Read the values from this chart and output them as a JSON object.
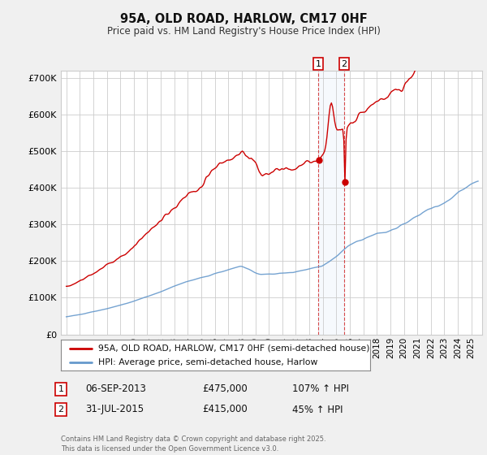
{
  "title": "95A, OLD ROAD, HARLOW, CM17 0HF",
  "subtitle": "Price paid vs. HM Land Registry's House Price Index (HPI)",
  "legend_line1": "95A, OLD ROAD, HARLOW, CM17 0HF (semi-detached house)",
  "legend_line2": "HPI: Average price, semi-detached house, Harlow",
  "annotation1_label": "1",
  "annotation1_date": "06-SEP-2013",
  "annotation1_price": "£475,000",
  "annotation1_hpi": "107% ↑ HPI",
  "annotation2_label": "2",
  "annotation2_date": "31-JUL-2015",
  "annotation2_price": "£415,000",
  "annotation2_hpi": "45% ↑ HPI",
  "footer": "Contains HM Land Registry data © Crown copyright and database right 2025.\nThis data is licensed under the Open Government Licence v3.0.",
  "red_color": "#cc0000",
  "blue_color": "#6699cc",
  "bg_color": "#f0f0f0",
  "plot_bg": "#ffffff",
  "grid_color": "#cccccc",
  "ylim": [
    0,
    720000
  ],
  "yticks": [
    0,
    100000,
    200000,
    300000,
    400000,
    500000,
    600000,
    700000
  ],
  "year_start": 1995,
  "year_end": 2025,
  "sale1_year": 2013.67,
  "sale2_year": 2015.58,
  "sale1_value": 475000,
  "sale2_value": 415000,
  "xlim_left": 1994.6,
  "xlim_right": 2025.8
}
